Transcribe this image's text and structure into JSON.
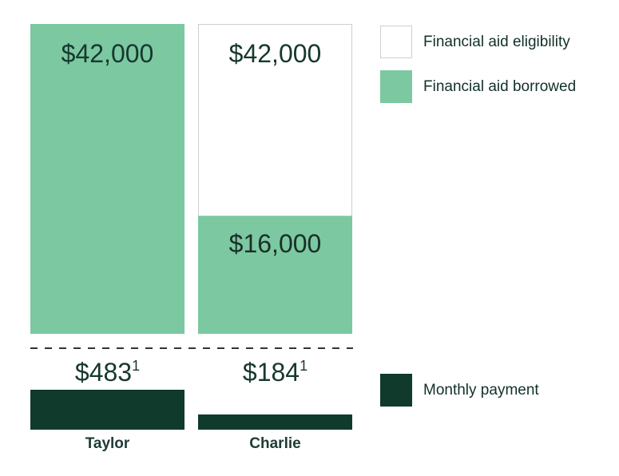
{
  "colors": {
    "eligibility_fill": "#ffffff",
    "eligibility_stroke": "#cfcfcf",
    "borrowed": "#7bc8a1",
    "monthly": "#0f3a2c",
    "text_dark": "#16382f",
    "divider": "#333333"
  },
  "chart_data": {
    "type": "bar",
    "categories": [
      "Taylor",
      "Charlie"
    ],
    "series": [
      {
        "name": "Financial aid eligibility",
        "values": [
          42000,
          42000
        ],
        "labels": [
          "$42,000",
          "$42,000"
        ]
      },
      {
        "name": "Financial aid borrowed",
        "values": [
          42000,
          16000
        ],
        "labels": [
          "$42,000",
          "$16,000"
        ]
      },
      {
        "name": "Monthly payment",
        "values": [
          483,
          184
        ],
        "labels": [
          "$483",
          "$184"
        ],
        "footnote": "1"
      }
    ],
    "legend": {
      "placement": "right",
      "items": [
        "Financial aid eligibility",
        "Financial aid borrowed",
        "Monthly payment"
      ]
    },
    "ylim_aid": [
      0,
      42000
    ],
    "ylim_payment": [
      0,
      483
    ]
  }
}
